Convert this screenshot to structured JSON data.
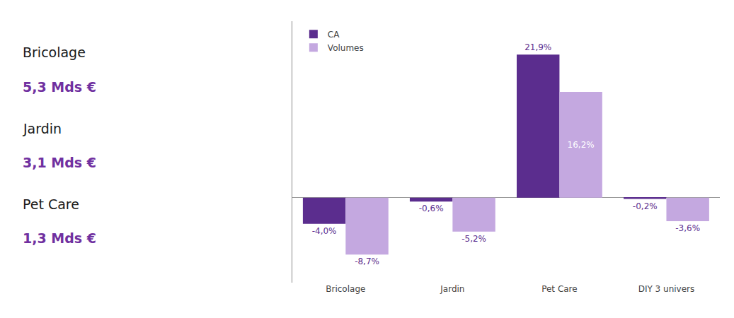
{
  "chart_data": {
    "type": "bar",
    "categories": [
      "Bricolage",
      "Jardin",
      "Pet Care",
      "DIY 3 univers"
    ],
    "series": [
      {
        "name": "CA",
        "color": "#5B2D8E",
        "values": [
          -4.0,
          -0.6,
          21.9,
          -0.2
        ],
        "value_labels": [
          "-4,0%",
          "-0,6%",
          "21,9%",
          "-0,2%"
        ]
      },
      {
        "name": "Volumes",
        "color": "#C4A8E0",
        "values": [
          -8.7,
          -5.2,
          16.2,
          -3.6
        ],
        "value_labels": [
          "-8,7%",
          "-5,2%",
          "16,2%",
          "-3,6%"
        ]
      }
    ],
    "ylim": [
      -13,
      27
    ],
    "yticks": [],
    "tick_labels": "x",
    "grid": false,
    "legend": "upper left",
    "data_labels": true,
    "annotations": [
      "Bricolage",
      "5,3 Mds €",
      "Jardin",
      "3,1 Mds €",
      "Pet Care",
      "1,3 Mds €"
    ]
  }
}
